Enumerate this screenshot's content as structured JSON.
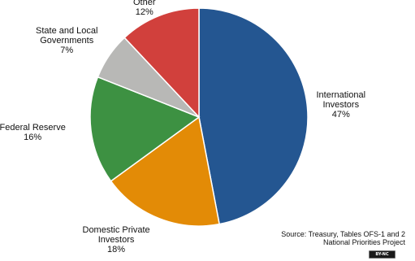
{
  "chart_data": {
    "type": "pie",
    "title": "",
    "start": "top",
    "direction": "clockwise",
    "slices": [
      {
        "name": "International Investors",
        "lines": [
          "International",
          "Investors"
        ],
        "value": 47,
        "label": "47%",
        "color": "#245691"
      },
      {
        "name": "Domestic Private Investors",
        "lines": [
          "Domestic Private",
          "Investors"
        ],
        "value": 18,
        "label": "18%",
        "color": "#e38b06"
      },
      {
        "name": "Federal Reserve",
        "lines": [
          "Federal Reserve"
        ],
        "value": 16,
        "label": "16%",
        "color": "#3d9142"
      },
      {
        "name": "State and Local Governments",
        "lines": [
          "State and Local",
          "Governments"
        ],
        "value": 7,
        "label": "7%",
        "color": "#b8b8b6"
      },
      {
        "name": "Other",
        "lines": [
          "Other"
        ],
        "value": 12,
        "label": "12%",
        "color": "#d1403c"
      }
    ]
  },
  "source": {
    "line1": "Source: Treasury, Tables OFS-1 and 2",
    "line2": "National Priorities Project"
  },
  "license": {
    "text": "BY-NC"
  }
}
